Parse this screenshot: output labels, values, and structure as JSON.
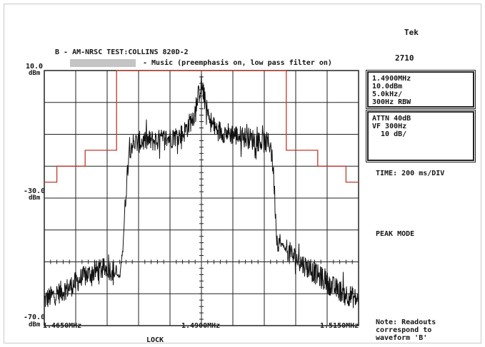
{
  "header": {
    "brand": "Tek",
    "model": "2710",
    "title": "B - AM-NRSC TEST:COLLINS 820D-2",
    "legend": "- Music (preemphasis on, low pass filter on)"
  },
  "readout": {
    "center_freq": "1.4900MHz",
    "ref_level": "10.0dBm",
    "span": "5.0kHz/",
    "rbw": "300Hz RBW"
  },
  "settings": {
    "attn": "ATTN 40dB",
    "vf": "VF 300Hz",
    "scale": "  10 dB/"
  },
  "time": "TIME: 200 ms/DIV",
  "mode": "PEAK MODE",
  "note": "Note: Readouts\ncorrespond to\nwaveform 'B'",
  "lock": "LOCK",
  "axis": {
    "y_top_value": "10.0",
    "y_top_unit": "dBm",
    "y_mid_value": "-30.0",
    "y_mid_unit": "dBm",
    "y_bottom_value": "-70.0",
    "y_bottom_unit": "dBm",
    "x_left": "1.4650MHz",
    "x_center": "1.4900MHz",
    "x_right": "1.5150MHz"
  },
  "colors": {
    "mask": "#c0392b",
    "trace": "#111111",
    "grid": "#222222"
  },
  "chart_data": {
    "type": "line",
    "xlim": [
      1.465,
      1.515
    ],
    "ylim": [
      -70,
      10
    ],
    "x_unit": "MHz",
    "y_unit": "dBm",
    "grid": true,
    "series": [
      {
        "x": [
          1.465,
          1.467,
          1.469,
          1.471,
          1.473,
          1.475,
          1.476,
          1.477,
          1.4775,
          1.478,
          1.4785,
          1.479,
          1.481,
          1.483,
          1.485,
          1.487,
          1.488,
          1.489,
          1.4895,
          1.49,
          1.4905,
          1.491,
          1.492,
          1.493,
          1.495,
          1.497,
          1.499,
          1.501,
          1.5015,
          1.502,
          1.503,
          1.505,
          1.507,
          1.509,
          1.511,
          1.513,
          1.515
        ],
        "y": [
          -62,
          -60,
          -58,
          -55,
          -53,
          -52,
          -53,
          -55,
          -45,
          -28,
          -14,
          -13,
          -12,
          -12,
          -11,
          -10,
          -7,
          -3,
          2,
          6,
          1,
          -4,
          -8,
          -9,
          -10,
          -11,
          -12,
          -13,
          -23,
          -43,
          -45,
          -49,
          -52,
          -55,
          -58,
          -60,
          -62
        ]
      }
    ],
    "mask": {
      "x": [
        1.465,
        1.467,
        1.467,
        1.4715,
        1.4715,
        1.4765,
        1.4765,
        1.49,
        1.5035,
        1.5035,
        1.5085,
        1.5085,
        1.513,
        1.513,
        1.515
      ],
      "y": [
        -25,
        -25,
        -20,
        -20,
        -15,
        -15,
        10,
        10,
        10,
        -15,
        -15,
        -20,
        -20,
        -25,
        -25
      ]
    }
  }
}
